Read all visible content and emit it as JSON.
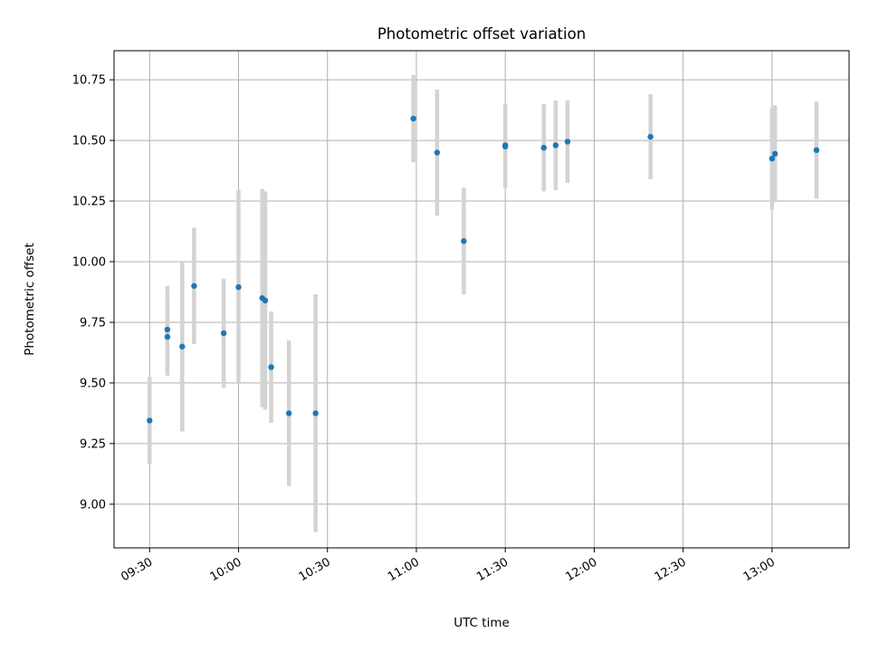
{
  "chart_data": {
    "type": "scatter",
    "title": "Photometric offset variation",
    "xlabel": "UTC time",
    "ylabel": "Photometric offset",
    "grid": true,
    "xlim": [
      "09:18",
      "13:26"
    ],
    "ylim": [
      8.82,
      10.87
    ],
    "x_ticks": [
      "09:30",
      "10:00",
      "10:30",
      "11:00",
      "11:30",
      "12:00",
      "12:30",
      "13:00"
    ],
    "y_ticks": [
      "9.00",
      "9.25",
      "9.50",
      "9.75",
      "10.00",
      "10.25",
      "10.50",
      "10.75"
    ],
    "series": [
      {
        "marker_color": "#1f77b4",
        "errorbar_color": "#d3d3d3",
        "points": [
          {
            "x": "09:30",
            "y": 9.345,
            "err": 0.18
          },
          {
            "x": "09:36",
            "y": 9.69,
            "err": 0.16
          },
          {
            "x": "09:36",
            "y": 9.72,
            "err": 0.18
          },
          {
            "x": "09:41",
            "y": 9.65,
            "err": 0.35
          },
          {
            "x": "09:45",
            "y": 9.9,
            "err": 0.24
          },
          {
            "x": "09:55",
            "y": 9.705,
            "err": 0.225
          },
          {
            "x": "10:00",
            "y": 9.895,
            "err": 0.4
          },
          {
            "x": "10:08",
            "y": 9.85,
            "err": 0.45
          },
          {
            "x": "10:09",
            "y": 9.84,
            "err": 0.45
          },
          {
            "x": "10:11",
            "y": 9.565,
            "err": 0.23
          },
          {
            "x": "10:17",
            "y": 9.375,
            "err": 0.3
          },
          {
            "x": "10:26",
            "y": 9.375,
            "err": 0.49
          },
          {
            "x": "10:59",
            "y": 10.59,
            "err": 0.18
          },
          {
            "x": "11:07",
            "y": 10.45,
            "err": 0.26
          },
          {
            "x": "11:16",
            "y": 10.085,
            "err": 0.22
          },
          {
            "x": "11:30",
            "y": 10.475,
            "err": 0.17
          },
          {
            "x": "11:30",
            "y": 10.48,
            "err": 0.17
          },
          {
            "x": "11:43",
            "y": 10.47,
            "err": 0.18
          },
          {
            "x": "11:47",
            "y": 10.48,
            "err": 0.185
          },
          {
            "x": "11:51",
            "y": 10.495,
            "err": 0.17
          },
          {
            "x": "12:19",
            "y": 10.515,
            "err": 0.175
          },
          {
            "x": "13:00",
            "y": 10.425,
            "err": 0.21
          },
          {
            "x": "13:01",
            "y": 10.445,
            "err": 0.2
          },
          {
            "x": "13:15",
            "y": 10.46,
            "err": 0.2
          }
        ]
      }
    ]
  }
}
